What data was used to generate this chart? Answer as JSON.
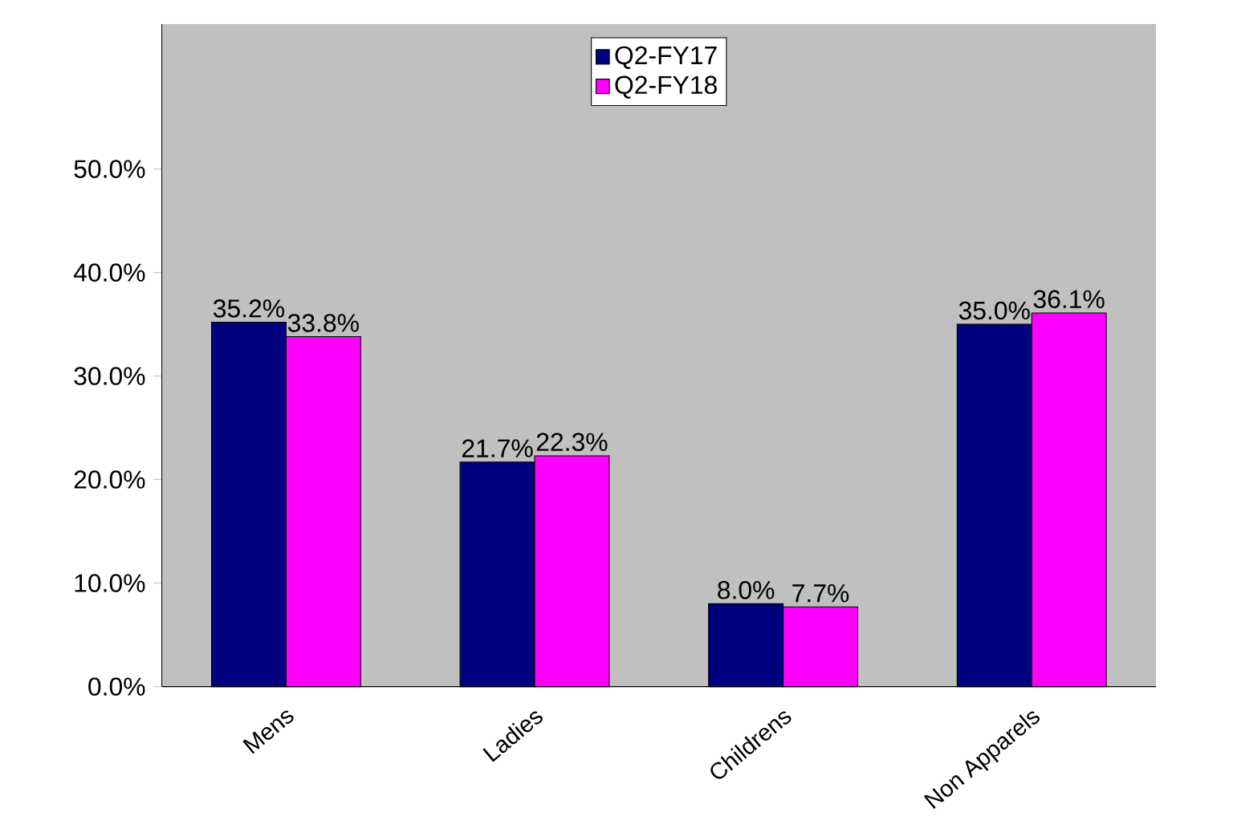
{
  "chart_data": {
    "type": "bar",
    "categories": [
      "Mens",
      "Ladies",
      "Childrens",
      "Non Apparels"
    ],
    "series": [
      {
        "name": "Q2-FY17",
        "color": "#000080",
        "values": [
          35.2,
          21.7,
          8.0,
          35.0
        ],
        "value_labels": [
          "35.2%",
          "21.7%",
          "8.0%",
          "35.0%"
        ]
      },
      {
        "name": "Q2-FY18",
        "color": "#ff00ff",
        "values": [
          33.8,
          22.3,
          7.7,
          36.1
        ],
        "value_labels": [
          "33.8%",
          "22.3%",
          "7.7%",
          "36.1%"
        ]
      }
    ],
    "ylim": [
      0,
      64
    ],
    "yticks": [
      {
        "value": 0,
        "label": "0.0%"
      },
      {
        "value": 10,
        "label": "10.0%"
      },
      {
        "value": 20,
        "label": "20.0%"
      },
      {
        "value": 30,
        "label": "30.0%"
      },
      {
        "value": 40,
        "label": "40.0%"
      },
      {
        "value": 50,
        "label": "50.0%"
      }
    ],
    "grid": false,
    "legend": "top"
  }
}
